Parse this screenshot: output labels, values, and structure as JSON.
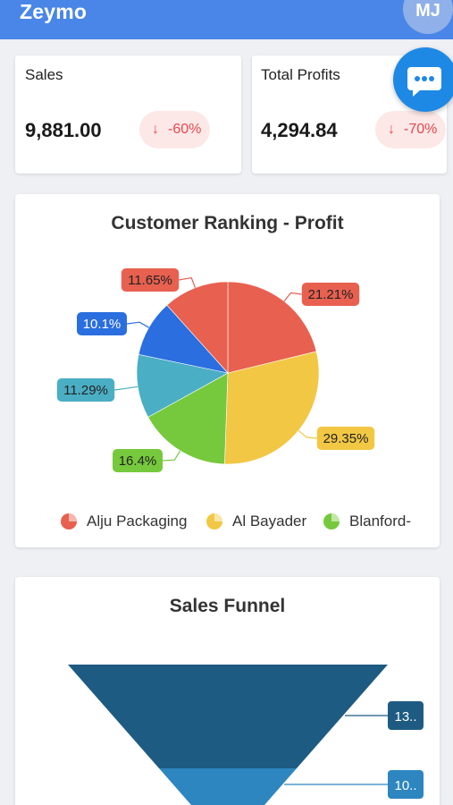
{
  "app": {
    "title": "Zeymo",
    "avatar_initials": "MJ"
  },
  "kpis": [
    {
      "label": "Sales",
      "value": "9,881.00",
      "change": "-60%",
      "trend": "down"
    },
    {
      "label": "Total Profits",
      "value": "4,294.84",
      "change": "-70%",
      "trend": "down"
    }
  ],
  "chat_button": {
    "icon": "chat-bubble-icon"
  },
  "customer_ranking": {
    "title": "Customer Ranking - Profit",
    "chart_data": {
      "type": "pie",
      "slices": [
        {
          "label": "21.21%",
          "value": 21.21,
          "color": "#e8604f"
        },
        {
          "label": "29.35%",
          "value": 29.35,
          "color": "#f2c744"
        },
        {
          "label": "16.4%",
          "value": 16.4,
          "color": "#76c93c"
        },
        {
          "label": "11.29%",
          "value": 11.29,
          "color": "#4aaec4"
        },
        {
          "label": "10.1%",
          "value": 10.1,
          "color": "#2a6ee0"
        },
        {
          "label": "11.65%",
          "value": 11.65,
          "color": "#e8604f"
        }
      ],
      "legend": [
        {
          "name": "Alju Packaging",
          "color": "#e8604f"
        },
        {
          "name": "Al Bayader",
          "color": "#f2c744"
        },
        {
          "name": "Blanford-",
          "color": "#76c93c"
        }
      ]
    }
  },
  "sales_funnel": {
    "title": "Sales Funnel",
    "chart_data": {
      "type": "funnel",
      "stages": [
        {
          "label": "13..",
          "color": "#1e5b82"
        },
        {
          "label": "10..",
          "color": "#2d86bf"
        }
      ]
    }
  }
}
